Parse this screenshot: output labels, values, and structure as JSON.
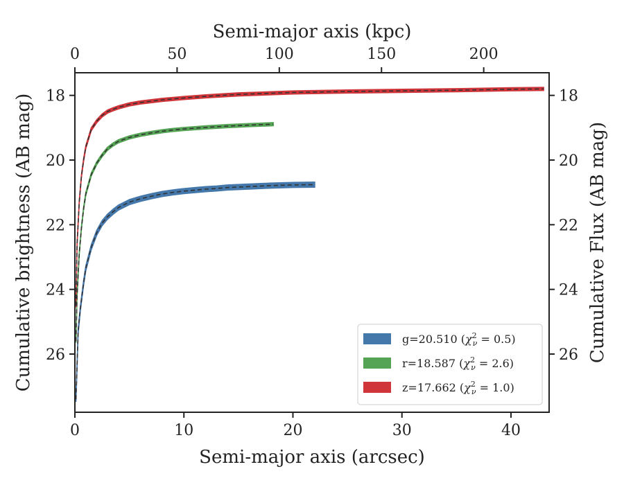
{
  "chart_data": {
    "type": "line",
    "xlabel": "Semi-major axis (arcsec)",
    "x2label": "Semi-major axis (kpc)",
    "ylabel": "Cumulative brightness (AB mag)",
    "y2label": "Cumulative Flux (AB mag)",
    "xlim": [
      0,
      43.5
    ],
    "x2lim": [
      0,
      232
    ],
    "ylim": [
      27.8,
      17.3
    ],
    "y_inverted": true,
    "xticks": [
      "0",
      "10",
      "20",
      "30",
      "40"
    ],
    "x2ticks": [
      "0",
      "50",
      "100",
      "150",
      "200"
    ],
    "yticks": [
      "18",
      "20",
      "22",
      "24",
      "26"
    ],
    "grid": false,
    "legend_position": "lower-right",
    "series": [
      {
        "name": "g=20.510 (χ²ν = 0.5)",
        "legend_main": "g=20.510 (",
        "legend_sym": "χ",
        "legend_sup": "2",
        "legend_sub": "ν",
        "legend_end": " = 0.5)",
        "color": "#4477aa",
        "x": [
          0.1,
          0.3,
          0.5,
          0.8,
          1.0,
          1.5,
          2.0,
          2.5,
          3.0,
          3.5,
          4.0,
          5.0,
          6.0,
          7.0,
          8.0,
          9.0,
          10.0,
          11.0,
          12.0,
          13.0,
          14.0,
          16.0,
          18.0,
          20.0,
          22.0
        ],
        "values": [
          27.4,
          25.3,
          24.6,
          23.8,
          23.35,
          22.7,
          22.25,
          21.95,
          21.75,
          21.6,
          21.47,
          21.3,
          21.2,
          21.12,
          21.05,
          21.0,
          20.96,
          20.93,
          20.9,
          20.88,
          20.85,
          20.82,
          20.79,
          20.77,
          20.76
        ],
        "band": 0.08
      },
      {
        "name": "r=18.587 (χ²ν = 2.6)",
        "legend_main": "r=18.587 (",
        "legend_sym": "χ",
        "legend_sup": "2",
        "legend_sub": "ν",
        "legend_end": " = 2.6)",
        "color": "#55a355",
        "x": [
          0.1,
          0.2,
          0.4,
          0.6,
          0.8,
          1.0,
          1.5,
          2.0,
          2.5,
          3.0,
          3.5,
          4.0,
          5.0,
          6.0,
          7.0,
          8.0,
          9.0,
          10.0,
          12.0,
          14.0,
          16.0,
          18.2
        ],
        "values": [
          25.6,
          24.2,
          22.9,
          22.1,
          21.5,
          21.05,
          20.45,
          20.1,
          19.85,
          19.65,
          19.52,
          19.42,
          19.3,
          19.22,
          19.16,
          19.11,
          19.07,
          19.04,
          18.99,
          18.95,
          18.92,
          18.89
        ],
        "band": 0.05
      },
      {
        "name": "z=17.662 (χ²ν = 1.0)",
        "legend_main": "z=17.662 (",
        "legend_sym": "χ",
        "legend_sup": "2",
        "legend_sub": "ν",
        "legend_end": " = 1.0)",
        "color": "#d0353a",
        "x": [
          0.1,
          0.2,
          0.4,
          0.6,
          0.8,
          1.0,
          1.5,
          2.0,
          2.5,
          3.0,
          3.5,
          4.0,
          5.0,
          6.0,
          7.0,
          8.0,
          10.0,
          12.0,
          15.0,
          20.0,
          25.0,
          30.0,
          35.0,
          40.0,
          43.0
        ],
        "values": [
          24.5,
          22.6,
          21.3,
          20.5,
          20.0,
          19.6,
          19.05,
          18.8,
          18.62,
          18.5,
          18.43,
          18.37,
          18.28,
          18.22,
          18.18,
          18.14,
          18.08,
          18.03,
          17.97,
          17.91,
          17.88,
          17.86,
          17.84,
          17.81,
          17.8
        ],
        "band": 0.05
      }
    ]
  }
}
